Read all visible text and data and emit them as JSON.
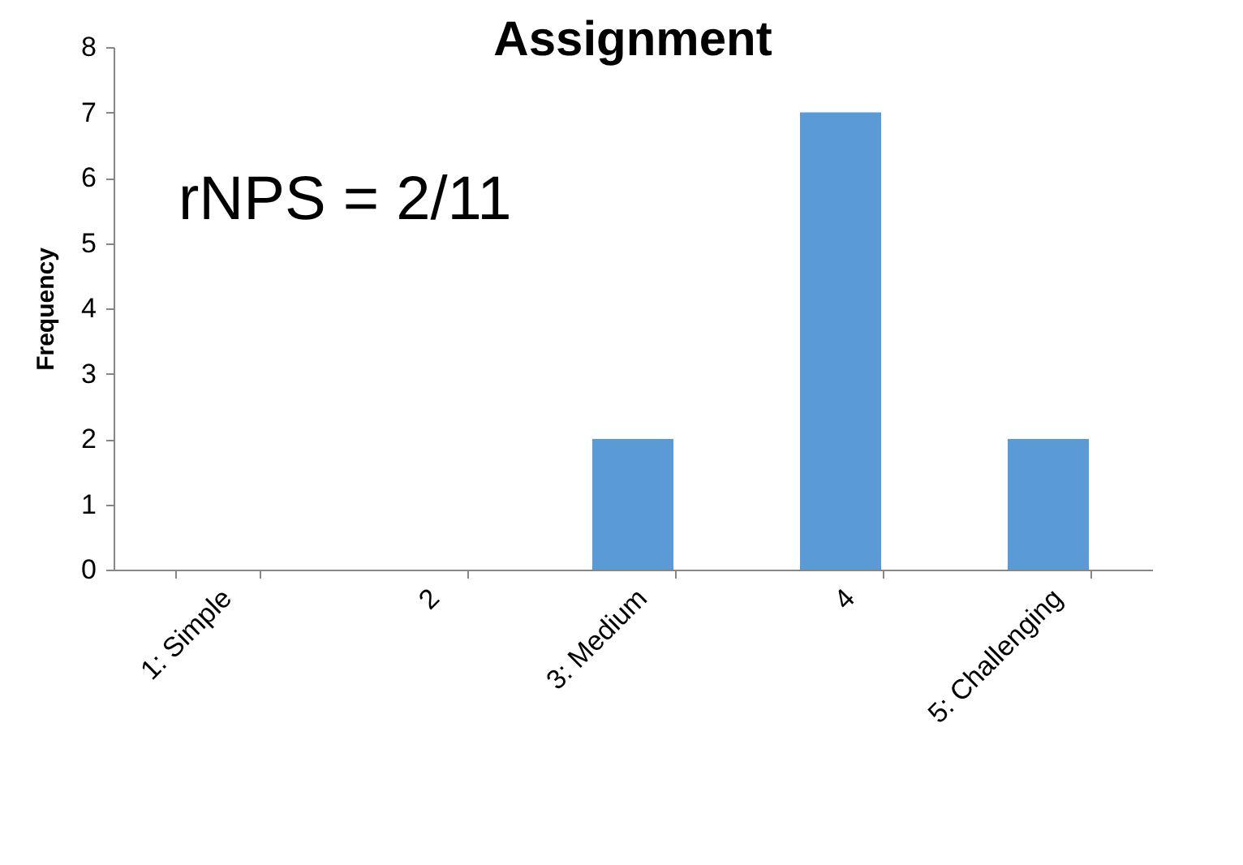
{
  "chart_data": {
    "type": "bar",
    "title": "Assignment",
    "ylabel": "Frequency",
    "categories": [
      "1: Simple",
      "2",
      "3: Medium",
      "4",
      "5: Challenging"
    ],
    "values": [
      0,
      0,
      2,
      7,
      2
    ],
    "color": "#5b9bd5",
    "ylim": [
      0,
      8
    ],
    "yticks": [
      0,
      1,
      2,
      3,
      4,
      5,
      6,
      7,
      8
    ],
    "grid": false,
    "annotations": [
      "rNPS = 2/11"
    ]
  }
}
